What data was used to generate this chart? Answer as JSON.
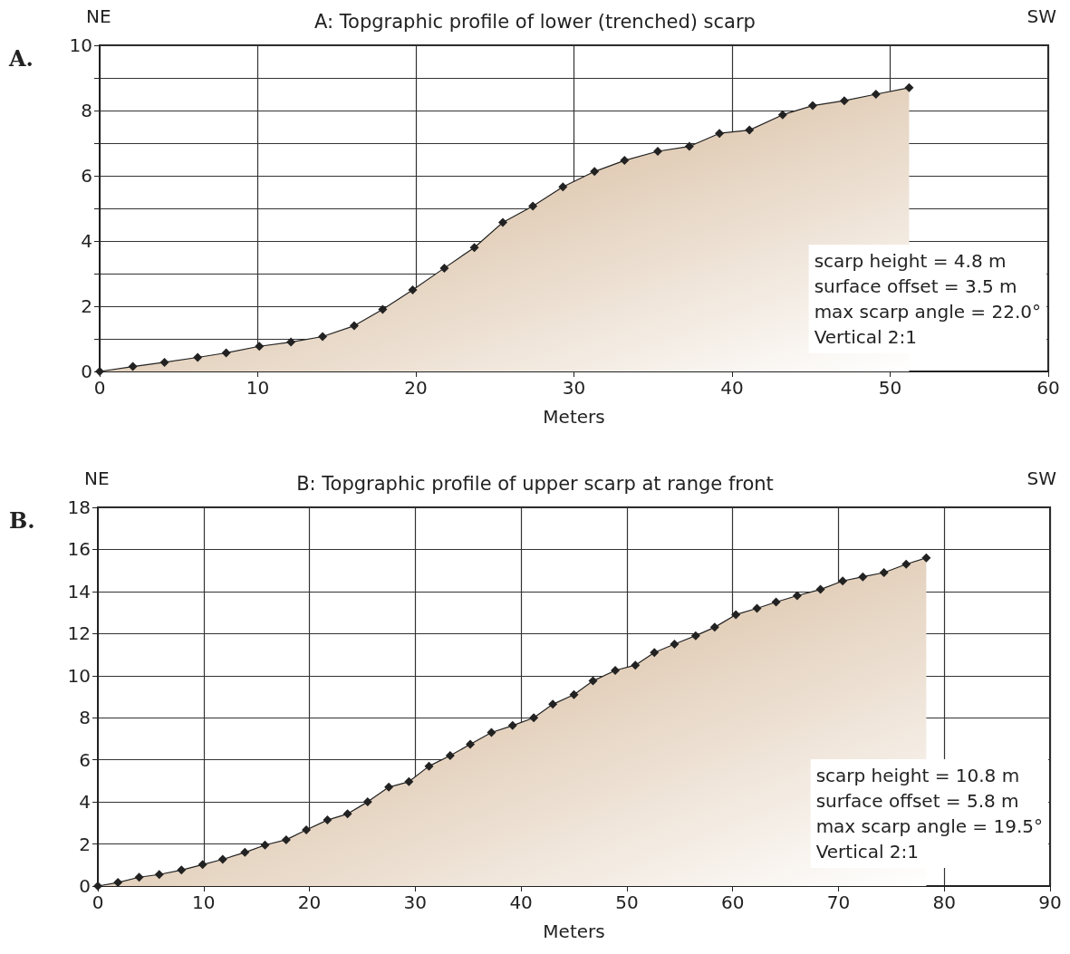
{
  "chart_data": [
    {
      "type": "area",
      "title": "A: Topgraphic profile of lower (trenched) scarp",
      "xlabel": "Meters",
      "annotations": [
        "A.",
        "NE",
        "SW",
        "scarp height = 4.8 m\nsurface offset = 3.5 m\nmax scarp angle = 22.0°\nVertical 2:1"
      ],
      "x": [
        0,
        2.1,
        4.1,
        6.2,
        8.0,
        10.1,
        12.1,
        14.1,
        16.1,
        17.9,
        19.8,
        21.8,
        23.7,
        25.5,
        27.4,
        29.3,
        31.3,
        33.2,
        35.3,
        37.3,
        39.2,
        41.1,
        43.2,
        45.1,
        47.1,
        49.1,
        51.2
      ],
      "series": [
        {
          "color": "#c9a47c",
          "values": [
            0,
            0.15,
            0.28,
            0.43,
            0.57,
            0.77,
            0.9,
            1.07,
            1.4,
            1.9,
            2.5,
            3.17,
            3.8,
            4.57,
            5.07,
            5.66,
            6.13,
            6.47,
            6.75,
            6.9,
            7.3,
            7.4,
            7.87,
            8.15,
            8.3,
            8.5,
            8.7
          ]
        }
      ],
      "xlim": [
        0,
        60
      ],
      "xticks": [
        0,
        10,
        20,
        30,
        40,
        50,
        60
      ],
      "ylim": [
        0,
        10
      ],
      "yticks": [
        0,
        {
          "value": 1,
          "label": null
        },
        2,
        {
          "value": 3,
          "label": null
        },
        4,
        {
          "value": 5,
          "label": null
        },
        6,
        {
          "value": 7,
          "label": null
        },
        8,
        {
          "value": 9,
          "label": null
        },
        10
      ],
      "grid": true,
      "marker": "diamond",
      "line_style": "solid"
    },
    {
      "type": "area",
      "title": "B: Topgraphic profile of upper scarp at range front",
      "xlabel": "Meters",
      "annotations": [
        "B.",
        "NE",
        "SW",
        "scarp height = 10.8 m\nsurface offset = 5.8 m\nmax scarp angle = 19.5°\nVertical 2:1"
      ],
      "x": [
        0,
        1.9,
        3.9,
        5.8,
        7.9,
        9.9,
        11.8,
        13.9,
        15.8,
        17.8,
        19.7,
        21.7,
        23.6,
        25.5,
        27.5,
        29.4,
        31.3,
        33.3,
        35.2,
        37.2,
        39.2,
        41.2,
        43.0,
        45.0,
        46.8,
        48.9,
        50.8,
        52.6,
        54.5,
        56.5,
        58.3,
        60.3,
        62.3,
        64.1,
        66.1,
        68.3,
        70.4,
        72.3,
        74.3,
        76.4,
        78.3
      ],
      "series": [
        {
          "color": "#c9a47c",
          "values": [
            0,
            0.17,
            0.42,
            0.55,
            0.76,
            1.02,
            1.27,
            1.6,
            1.95,
            2.2,
            2.67,
            3.14,
            3.43,
            4.0,
            4.7,
            4.96,
            5.7,
            6.2,
            6.74,
            7.3,
            7.63,
            8.0,
            8.64,
            9.1,
            9.75,
            10.25,
            10.5,
            11.1,
            11.5,
            11.9,
            12.3,
            12.9,
            13.2,
            13.5,
            13.8,
            14.1,
            14.5,
            14.7,
            14.9,
            15.3,
            15.6
          ]
        }
      ],
      "xlim": [
        0,
        90
      ],
      "xticks": [
        0,
        10,
        20,
        30,
        40,
        50,
        60,
        70,
        80,
        90
      ],
      "ylim": [
        0,
        18
      ],
      "yticks": [
        0,
        2,
        4,
        6,
        8,
        10,
        12,
        14,
        16,
        18
      ],
      "grid": true,
      "marker": "diamond",
      "line_style": "solid"
    }
  ]
}
